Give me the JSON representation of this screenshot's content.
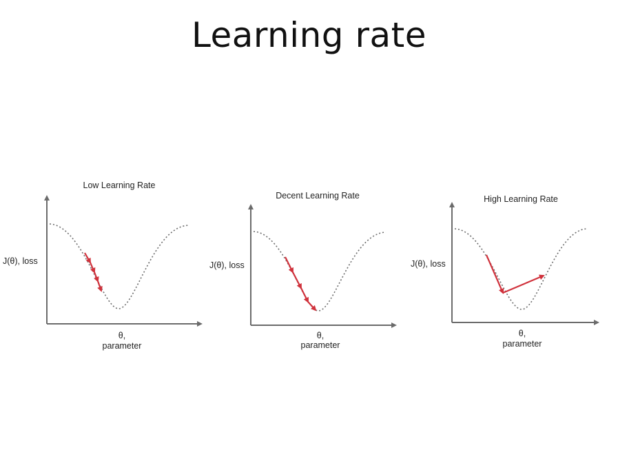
{
  "slide": {
    "title": "Learning rate"
  },
  "panels": [
    {
      "title": "Low Learning Rate",
      "y_label": "J(θ), loss",
      "x_label_line1": "θ,",
      "x_label_line2": "parameter"
    },
    {
      "title": "Decent Learning Rate",
      "y_label": "J(θ), loss",
      "x_label_line1": "θ,",
      "x_label_line2": "parameter"
    },
    {
      "title": "High Learning Rate",
      "y_label": "J(θ), loss",
      "x_label_line1": "θ,",
      "x_label_line2": "parameter"
    }
  ],
  "colors": {
    "axis": "#6b6b6b",
    "curve": "#6b6b6b",
    "step": "#d0323c"
  }
}
